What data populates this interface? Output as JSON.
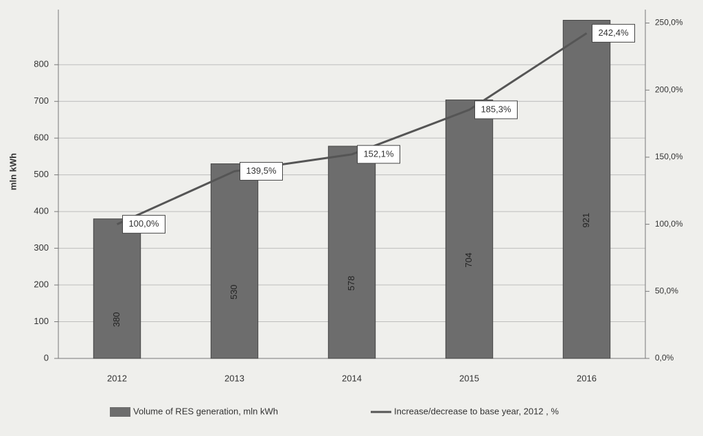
{
  "chart_data": {
    "type": "bar",
    "y_label": "mln kWh",
    "categories": [
      "2012",
      "2013",
      "2014",
      "2015",
      "2016"
    ],
    "series": [
      {
        "name": "Volume of RES generation, mln kWh",
        "type": "bar",
        "color": "#6d6d6d",
        "values": [
          380,
          530,
          578,
          704,
          921
        ]
      },
      {
        "name": "Increase/decrease to base year, 2012 , %",
        "type": "line",
        "axis": "y2",
        "color": "#555555",
        "values": [
          100.0,
          139.5,
          152.1,
          185.3,
          242.4
        ],
        "value_labels": [
          "100,0%",
          "139,5%",
          "152,1%",
          "185,3%",
          "242,4%"
        ]
      }
    ],
    "ylim": [
      0,
      950
    ],
    "yticks": [
      0,
      100,
      200,
      300,
      400,
      500,
      600,
      700,
      800
    ],
    "y2lim": [
      0,
      260
    ],
    "y2ticks": [
      {
        "value": 0,
        "label": "0,0%"
      },
      {
        "value": 50,
        "label": "50,0%"
      },
      {
        "value": 100,
        "label": "100,0%"
      },
      {
        "value": 150,
        "label": "150,0%"
      },
      {
        "value": 200,
        "label": "200,0%"
      },
      {
        "value": 250,
        "label": "250,0%"
      }
    ],
    "grid": true,
    "legend": "bottom"
  }
}
